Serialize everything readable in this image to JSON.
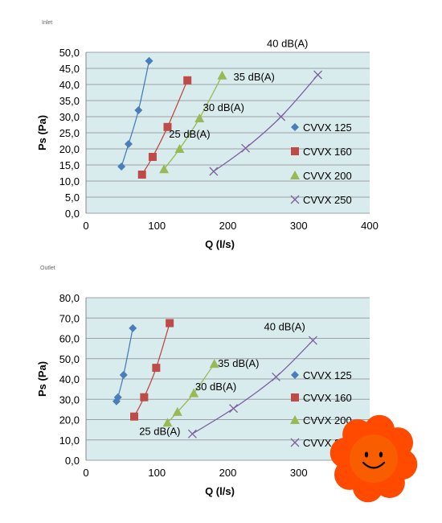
{
  "page": {
    "title_top": "Inlet",
    "title_bottom": "Outlet"
  },
  "colors": {
    "plot_bg": "#d9eced",
    "grid": "#9aa0a6",
    "CVVX 125": "#4a7ebb",
    "CVVX 160": "#be4b48",
    "CVVX 200": "#98b954",
    "CVVX 250": "#7d60a0",
    "flower_petal": "#ff4a00",
    "flower_center": "#f85e00"
  },
  "chart_data": [
    {
      "type": "line",
      "title": "Inlet",
      "xlabel": "Q (l/s)",
      "ylabel": "Ps (Pa)",
      "xlim": [
        0,
        400
      ],
      "ylim": [
        0,
        50
      ],
      "xticks": [
        0,
        100,
        200,
        300,
        400
      ],
      "xtick_labels": [
        "0",
        "100",
        "200",
        "300",
        "400"
      ],
      "yticks": [
        0,
        5,
        10,
        15,
        20,
        25,
        30,
        35,
        40,
        45,
        50
      ],
      "ytick_labels": [
        "0,0",
        "5,0",
        "10,0",
        "15,0",
        "20,0",
        "25,0",
        "30,0",
        "35,0",
        "40,0",
        "45,0",
        "50,0"
      ],
      "grid": "horizontal",
      "legend_position": "right",
      "series": [
        {
          "name": "CVVX 125",
          "marker": "diamond",
          "points": [
            [
              50,
              14.5
            ],
            [
              60,
              21.5
            ],
            [
              74,
              32
            ],
            [
              89,
              47.3
            ]
          ]
        },
        {
          "name": "CVVX 160",
          "marker": "square",
          "points": [
            [
              79,
              12
            ],
            [
              94,
              17.5
            ],
            [
              115,
              26.8
            ],
            [
              143,
              41.3
            ]
          ]
        },
        {
          "name": "CVVX 200",
          "marker": "triangle",
          "points": [
            [
              110,
              13.7
            ],
            [
              132,
              20
            ],
            [
              160,
              29.5
            ],
            [
              192,
              42.8
            ]
          ]
        },
        {
          "name": "CVVX 250",
          "marker": "x",
          "points": [
            [
              180,
              13
            ],
            [
              225,
              20.2
            ],
            [
              275,
              30
            ],
            [
              327,
              43
            ]
          ]
        }
      ],
      "annotations": [
        {
          "text": "25 dB(A)",
          "x": 117,
          "y": 23.5
        },
        {
          "text": "30 dB(A)",
          "x": 165,
          "y": 31.7
        },
        {
          "text": "35 dB(A)",
          "x": 208,
          "y": 41.3
        },
        {
          "text": "40 dB(A)",
          "x": 255,
          "y": 51.6
        }
      ]
    },
    {
      "type": "line",
      "title": "Outlet",
      "xlabel": "Q (l/s)",
      "ylabel": "Ps (Pa)",
      "xlim": [
        0,
        400
      ],
      "ylim": [
        0,
        80
      ],
      "xticks": [
        0,
        100,
        200,
        300
      ],
      "xtick_labels": [
        "0",
        "100",
        "200",
        "300"
      ],
      "yticks": [
        0,
        10,
        20,
        30,
        40,
        50,
        60,
        70,
        80
      ],
      "ytick_labels": [
        "0,0",
        "10,0",
        "20,0",
        "30,0",
        "40,0",
        "50,0",
        "60,0",
        "70,0",
        "80,0"
      ],
      "grid": "horizontal",
      "legend_position": "right",
      "series": [
        {
          "name": "CVVX 125",
          "marker": "diamond",
          "points": [
            [
              43,
              29
            ],
            [
              45,
              31
            ],
            [
              53,
              42
            ],
            [
              66,
              65
            ]
          ]
        },
        {
          "name": "CVVX 160",
          "marker": "square",
          "points": [
            [
              68,
              21.5
            ],
            [
              82,
              31
            ],
            [
              99,
              45.5
            ],
            [
              118,
              67.5
            ]
          ]
        },
        {
          "name": "CVVX 200",
          "marker": "triangle",
          "points": [
            [
              115,
              18.5
            ],
            [
              129,
              23.8
            ],
            [
              152,
              33
            ],
            [
              181,
              47.5
            ]
          ]
        },
        {
          "name": "CVVX 250",
          "marker": "x",
          "points": [
            [
              150,
              13
            ],
            [
              208,
              25.5
            ],
            [
              268,
              41
            ],
            [
              320,
              59
            ]
          ]
        }
      ],
      "annotations": [
        {
          "text": "25 dB(A)",
          "x": 75,
          "y": 12.5
        },
        {
          "text": "30 dB(A)",
          "x": 154,
          "y": 34.5
        },
        {
          "text": "35 dB(A)",
          "x": 186,
          "y": 46
        },
        {
          "text": "40 dB(A)",
          "x": 251,
          "y": 64
        }
      ]
    }
  ]
}
